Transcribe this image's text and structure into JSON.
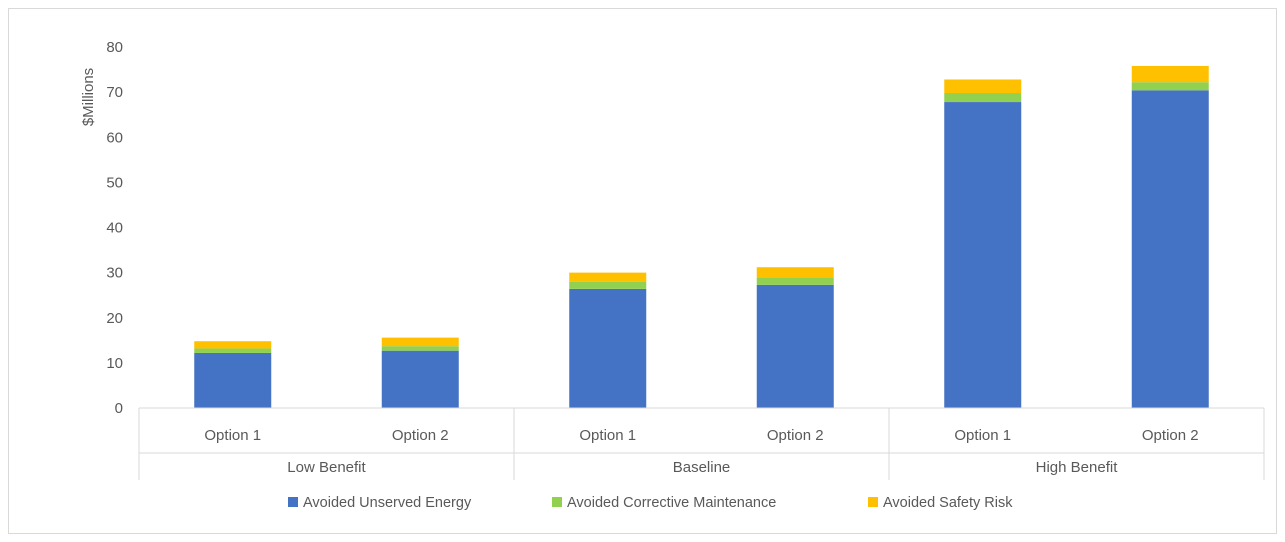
{
  "chart_data": {
    "type": "bar",
    "stacked": true,
    "ylabel": "$Millions",
    "ylim": [
      0,
      80
    ],
    "yticks": [
      0,
      10,
      20,
      30,
      40,
      50,
      60,
      70,
      80
    ],
    "grid": false,
    "legend_position": "bottom",
    "groups": [
      "Low Benefit",
      "Baseline",
      "High Benefit"
    ],
    "categories": [
      "Option 1",
      "Option 2",
      "Option 1",
      "Option 2",
      "Option 1",
      "Option 2"
    ],
    "series": [
      {
        "name": "Avoided Unserved Energy",
        "color": "#4472C4",
        "values": [
          12.2,
          12.7,
          26.4,
          27.3,
          67.8,
          70.4
        ]
      },
      {
        "name": "Avoided Corrective Maintenance",
        "color": "#92D050",
        "values": [
          1.0,
          1.0,
          1.6,
          1.6,
          2.0,
          1.8
        ]
      },
      {
        "name": "Avoided Safety Risk",
        "color": "#FFC000",
        "values": [
          1.6,
          1.9,
          2.0,
          2.3,
          3.0,
          3.6
        ]
      }
    ]
  }
}
